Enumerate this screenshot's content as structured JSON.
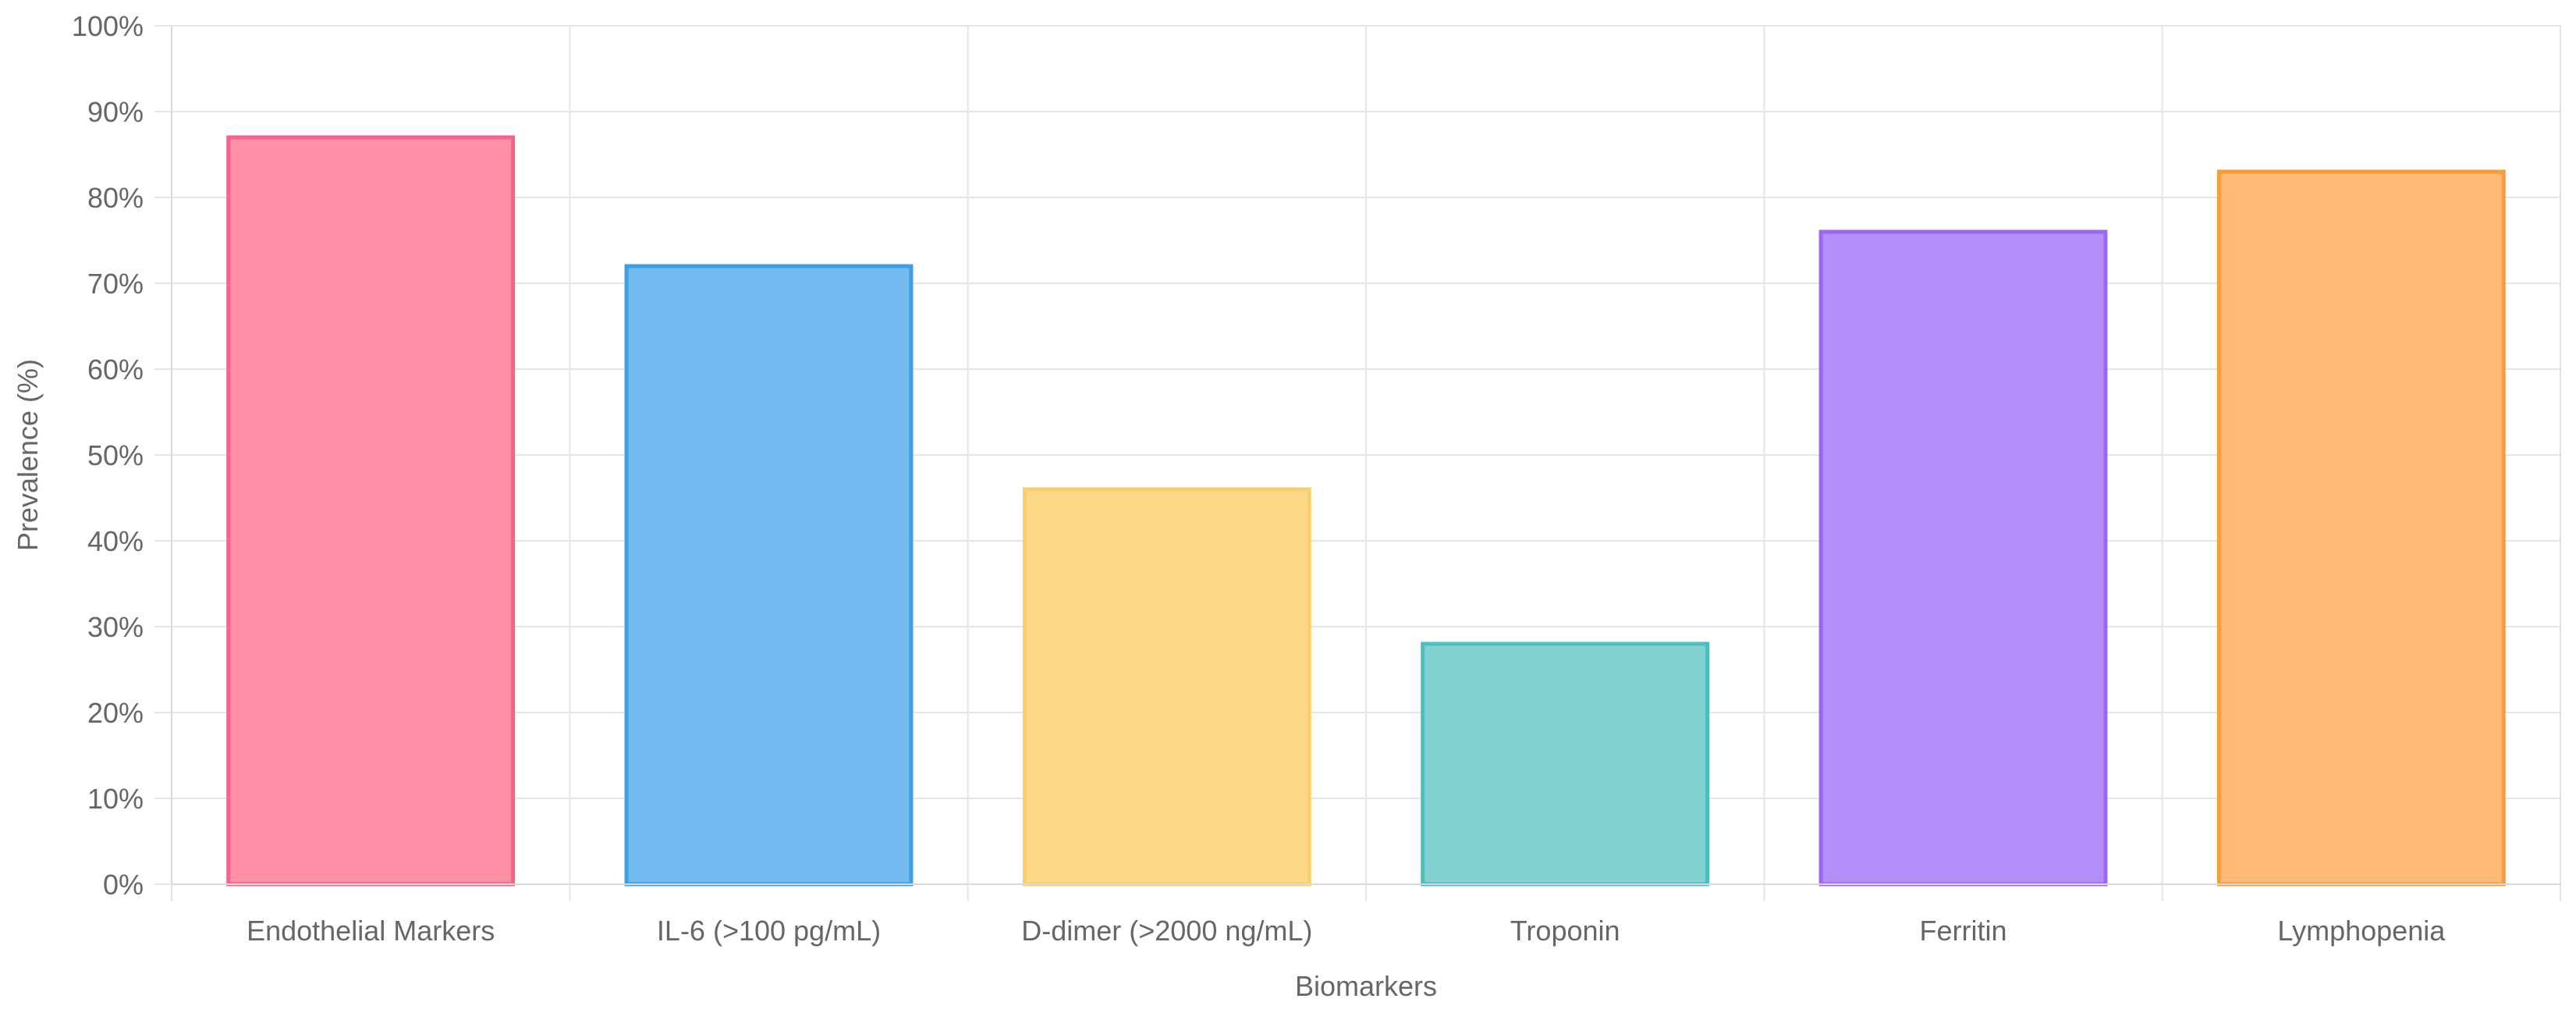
{
  "chart_data": {
    "type": "bar",
    "title": "",
    "xlabel": "Biomarkers",
    "ylabel": "Prevalence (%)",
    "ylim": [
      0,
      100
    ],
    "yticks": [
      "0%",
      "10%",
      "20%",
      "30%",
      "40%",
      "50%",
      "60%",
      "70%",
      "80%",
      "90%",
      "100%"
    ],
    "categories": [
      "Endothelial Markers",
      "IL-6 (>100 pg/mL)",
      "D-dimer (>2000 ng/mL)",
      "Troponin",
      "Ferritin",
      "Lymphopenia"
    ],
    "values": [
      87,
      72,
      46,
      28,
      76,
      83
    ],
    "colors": {
      "fill": [
        "#ff90a6",
        "#71bbf0",
        "#fdd988",
        "#81d1d1",
        "#b48ffa",
        "#ffb977"
      ],
      "stroke": [
        "#f7648a",
        "#3d9fe4",
        "#f9ce6b",
        "#48bfbe",
        "#9a68f5",
        "#f99c3c"
      ],
      "grid": "#e5e5e5",
      "text": "#666666"
    },
    "grid": true,
    "legend": "none"
  }
}
